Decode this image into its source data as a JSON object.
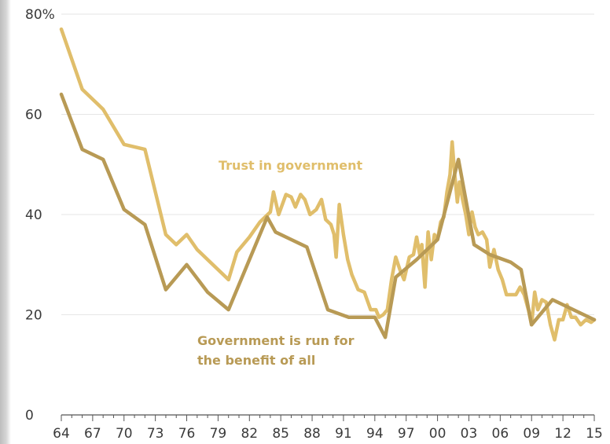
{
  "chart_data": {
    "type": "line",
    "title": "",
    "xlabel": "",
    "ylabel": "",
    "x_ticks": [
      "64",
      "67",
      "70",
      "73",
      "76",
      "79",
      "82",
      "85",
      "88",
      "91",
      "94",
      "97",
      "00",
      "03",
      "06",
      "09",
      "12",
      "15"
    ],
    "y_ticks": [
      "0",
      "20",
      "40",
      "60",
      "80%"
    ],
    "xlim": [
      1964,
      2015
    ],
    "ylim": [
      0,
      80
    ],
    "grid": "horizontal",
    "legend": "inline labels",
    "series": [
      {
        "color": "#e0be6b",
        "label_lines": [
          "Trust in government"
        ],
        "points": [
          [
            1964,
            77
          ],
          [
            1966,
            65
          ],
          [
            1968,
            61
          ],
          [
            1970,
            54
          ],
          [
            1972,
            53
          ],
          [
            1974,
            36
          ],
          [
            1975,
            34
          ],
          [
            1976,
            36
          ],
          [
            1977,
            33
          ],
          [
            1978,
            31
          ],
          [
            1979.5,
            28
          ],
          [
            1980,
            27
          ],
          [
            1980.8,
            32.5
          ],
          [
            1982,
            35.5
          ],
          [
            1983,
            38.5
          ],
          [
            1984,
            40.5
          ],
          [
            1984.3,
            44.5
          ],
          [
            1984.8,
            40
          ],
          [
            1985.5,
            44
          ],
          [
            1986,
            43.5
          ],
          [
            1986.4,
            41.5
          ],
          [
            1986.9,
            44
          ],
          [
            1987.3,
            43
          ],
          [
            1987.8,
            40
          ],
          [
            1988.4,
            41
          ],
          [
            1988.9,
            43
          ],
          [
            1989.3,
            39
          ],
          [
            1989.8,
            38
          ],
          [
            1990.1,
            36
          ],
          [
            1990.3,
            31.5
          ],
          [
            1990.6,
            42
          ],
          [
            1991,
            36
          ],
          [
            1991.4,
            31
          ],
          [
            1991.8,
            28
          ],
          [
            1992.4,
            25
          ],
          [
            1993,
            24.5
          ],
          [
            1993.6,
            21
          ],
          [
            1994.1,
            21
          ],
          [
            1994.4,
            19.5
          ],
          [
            1994.8,
            20
          ],
          [
            1995.2,
            21
          ],
          [
            1995.6,
            27
          ],
          [
            1996,
            31.5
          ],
          [
            1996.4,
            29
          ],
          [
            1996.8,
            27
          ],
          [
            1997.3,
            31.5
          ],
          [
            1997.7,
            32
          ],
          [
            1998,
            35.5
          ],
          [
            1998.3,
            32
          ],
          [
            1998.5,
            34
          ],
          [
            1998.8,
            25.5
          ],
          [
            1999.1,
            36.5
          ],
          [
            1999.4,
            31
          ],
          [
            1999.7,
            36
          ],
          [
            2000,
            35
          ],
          [
            2000.3,
            38.5
          ],
          [
            2000.6,
            39.5
          ],
          [
            2000.9,
            44.5
          ],
          [
            2001.2,
            48
          ],
          [
            2001.4,
            54.5
          ],
          [
            2001.6,
            49
          ],
          [
            2001.9,
            42.5
          ],
          [
            2002.1,
            46.5
          ],
          [
            2002.4,
            43
          ],
          [
            2002.7,
            40
          ],
          [
            2003,
            36
          ],
          [
            2003.3,
            40.5
          ],
          [
            2003.6,
            37.5
          ],
          [
            2003.9,
            36
          ],
          [
            2004.3,
            36.5
          ],
          [
            2004.7,
            35
          ],
          [
            2005,
            29.5
          ],
          [
            2005.4,
            33
          ],
          [
            2005.8,
            29
          ],
          [
            2006.2,
            27
          ],
          [
            2006.6,
            24
          ],
          [
            2007,
            24
          ],
          [
            2007.5,
            24
          ],
          [
            2007.9,
            25.5
          ],
          [
            2008.3,
            24
          ],
          [
            2008.7,
            21
          ],
          [
            2009,
            18
          ],
          [
            2009.3,
            24.5
          ],
          [
            2009.6,
            21
          ],
          [
            2010,
            23
          ],
          [
            2010.4,
            22.5
          ],
          [
            2010.8,
            18
          ],
          [
            2011.2,
            15
          ],
          [
            2011.6,
            19
          ],
          [
            2012,
            19
          ],
          [
            2012.4,
            22
          ],
          [
            2012.8,
            19.5
          ],
          [
            2013.2,
            19.5
          ],
          [
            2013.7,
            18
          ],
          [
            2014.2,
            19
          ],
          [
            2014.7,
            18.5
          ],
          [
            2015,
            19
          ]
        ]
      },
      {
        "color": "#b89a55",
        "label_lines": [
          "Government is run for",
          "the benefit of all"
        ],
        "points": [
          [
            1964,
            64
          ],
          [
            1966,
            53
          ],
          [
            1968,
            51
          ],
          [
            1970,
            41
          ],
          [
            1972,
            38
          ],
          [
            1974,
            25
          ],
          [
            1976,
            30
          ],
          [
            1978,
            24.5
          ],
          [
            1980,
            21
          ],
          [
            1982,
            31
          ],
          [
            1983.7,
            39.5
          ],
          [
            1984.5,
            36.5
          ],
          [
            1986,
            35
          ],
          [
            1987.5,
            33.5
          ],
          [
            1989.5,
            21
          ],
          [
            1991.5,
            19.5
          ],
          [
            1994,
            19.5
          ],
          [
            1995,
            15.5
          ],
          [
            1996,
            27.5
          ],
          [
            1998,
            31
          ],
          [
            2000,
            35
          ],
          [
            2002,
            51
          ],
          [
            2003.5,
            34
          ],
          [
            2005,
            32
          ],
          [
            2007,
            30.5
          ],
          [
            2008,
            29
          ],
          [
            2009,
            18
          ],
          [
            2011,
            23
          ],
          [
            2015,
            19
          ]
        ]
      }
    ]
  }
}
